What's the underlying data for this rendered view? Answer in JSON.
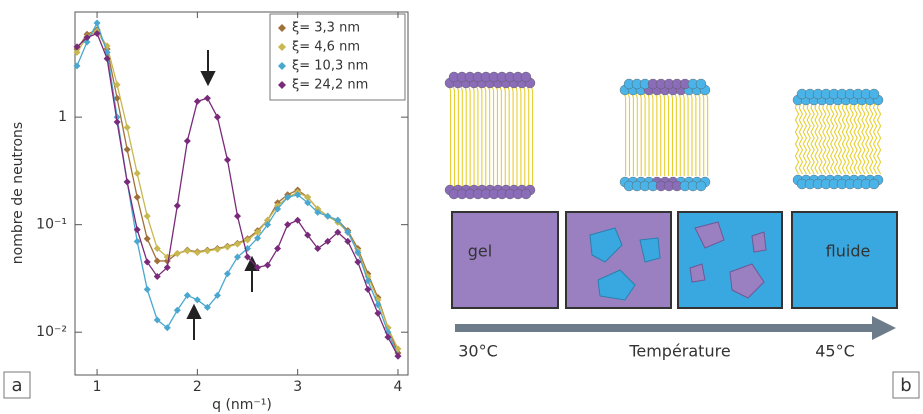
{
  "chart_data": {
    "type": "line",
    "xlabel": "q (nm⁻¹)",
    "ylabel": "nombre de neutrons",
    "log_y": true,
    "legend": "upper right",
    "xlim": [
      0.78,
      4.1
    ],
    "xticks": [
      1,
      2,
      3,
      4
    ],
    "ylim": [
      0.004,
      9.5
    ],
    "yticks": [
      {
        "value": 0.01,
        "label": "10⁻²"
      },
      {
        "value": 0.1,
        "label": "10⁻¹"
      },
      1
    ],
    "x": [
      0.8,
      0.9,
      1.0,
      1.1,
      1.2,
      1.3,
      1.4,
      1.5,
      1.6,
      1.7,
      1.8,
      1.9,
      2.0,
      2.1,
      2.2,
      2.3,
      2.4,
      2.5,
      2.6,
      2.7,
      2.8,
      2.9,
      3.0,
      3.1,
      3.2,
      3.3,
      3.4,
      3.5,
      3.6,
      3.7,
      3.8,
      3.9,
      4.0
    ],
    "series": [
      {
        "name": "ξ= 3,3 nm",
        "color": "#a0703a",
        "values": [
          4.3,
          5.9,
          6.5,
          4.3,
          1.5,
          0.5,
          0.18,
          0.074,
          0.046,
          0.046,
          0.054,
          0.058,
          0.056,
          0.058,
          0.06,
          0.063,
          0.067,
          0.074,
          0.088,
          0.11,
          0.16,
          0.19,
          0.21,
          0.18,
          0.14,
          0.12,
          0.11,
          0.088,
          0.06,
          0.035,
          0.021,
          0.011,
          0.0064
        ]
      },
      {
        "name": "ξ= 4,6 nm",
        "color": "#c8b850",
        "values": [
          4.0,
          5.6,
          6.3,
          4.6,
          2.0,
          0.8,
          0.3,
          0.12,
          0.06,
          0.05,
          0.054,
          0.057,
          0.055,
          0.057,
          0.059,
          0.062,
          0.066,
          0.072,
          0.085,
          0.11,
          0.15,
          0.18,
          0.2,
          0.18,
          0.14,
          0.12,
          0.105,
          0.085,
          0.057,
          0.033,
          0.02,
          0.011,
          0.007
        ]
      },
      {
        "name": "ξ= 10,3 nm",
        "color": "#4aa8d0",
        "values": [
          3.0,
          5.0,
          7.5,
          4.0,
          1.0,
          0.25,
          0.07,
          0.025,
          0.013,
          0.011,
          0.016,
          0.022,
          0.02,
          0.017,
          0.022,
          0.035,
          0.05,
          0.06,
          0.075,
          0.1,
          0.14,
          0.18,
          0.19,
          0.16,
          0.13,
          0.12,
          0.11,
          0.085,
          0.055,
          0.03,
          0.018,
          0.01,
          0.006
        ]
      },
      {
        "name": "ξ= 24,2 nm",
        "color": "#7a2a7a",
        "values": [
          4.5,
          5.5,
          6.0,
          3.5,
          0.9,
          0.25,
          0.09,
          0.045,
          0.033,
          0.04,
          0.15,
          0.6,
          1.4,
          1.5,
          1.0,
          0.4,
          0.12,
          0.05,
          0.04,
          0.042,
          0.06,
          0.1,
          0.11,
          0.08,
          0.06,
          0.07,
          0.085,
          0.07,
          0.045,
          0.025,
          0.015,
          0.009,
          0.006
        ]
      }
    ]
  },
  "panel_labels": [
    "a",
    "b"
  ],
  "diagram": {
    "phases": [
      "gel",
      "fluide"
    ],
    "axis_start": "30°C",
    "axis_label": "Température",
    "axis_end": "45°C"
  }
}
